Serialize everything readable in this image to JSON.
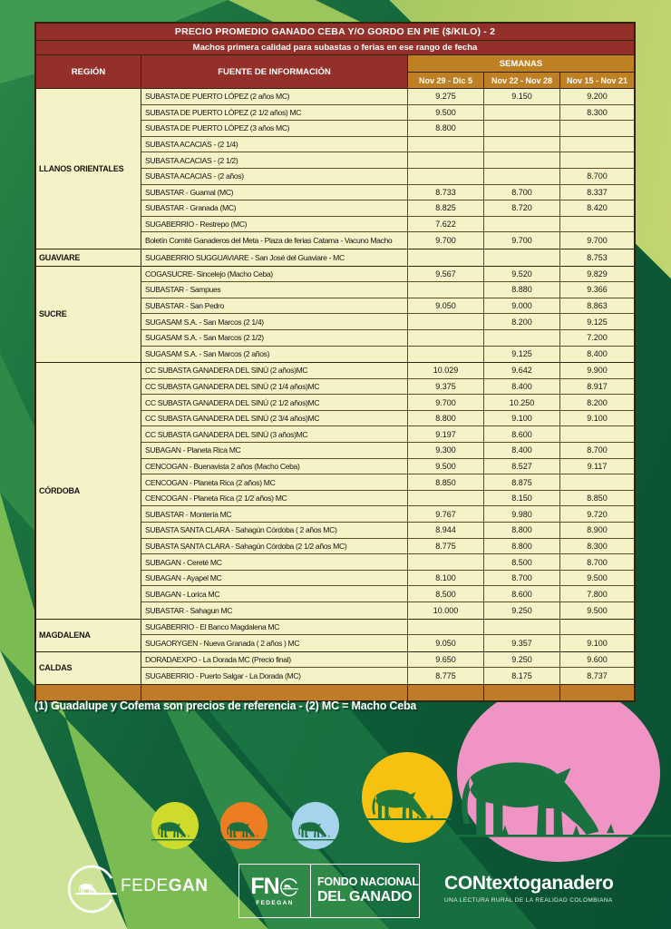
{
  "table": {
    "title": "PRECIO PROMEDIO GANADO CEBA Y/O GORDO EN PIE ($/KILO) - 2",
    "subtitle": "Machos primera calidad para subastas o ferias en ese rango de fecha",
    "columns": {
      "region": "REGIÓN",
      "source": "FUENTE DE INFORMACIÓN",
      "weeks_group": "SEMANAS",
      "weeks": [
        "Nov 29 - Dic 5",
        "Nov 22 - Nov 28",
        "Nov 15 - Nov 21"
      ]
    },
    "groups": [
      {
        "region": "LLANOS ORIENTALES",
        "rows": [
          {
            "source": "SUBASTA DE PUERTO LÓPEZ (2 años MC)",
            "values": [
              "9.275",
              "9.150",
              "9.200"
            ]
          },
          {
            "source": "SUBASTA DE PUERTO LÓPEZ (2 1/2 años) MC",
            "values": [
              "9.500",
              "",
              "8.300"
            ]
          },
          {
            "source": "SUBASTA DE PUERTO LÓPEZ (3 años MC)",
            "values": [
              "8.800",
              "",
              ""
            ]
          },
          {
            "source": "SUBASTA ACACIAS -  (2 1/4)",
            "values": [
              "",
              "",
              ""
            ]
          },
          {
            "source": "SUBASTA ACACIAS - (2 1/2)",
            "values": [
              "",
              "",
              ""
            ]
          },
          {
            "source": "SUBASTA ACACIAS - (2 años)",
            "values": [
              "",
              "",
              "8.700"
            ]
          },
          {
            "source": "SUBASTAR - Guamal (MC)",
            "values": [
              "8.733",
              "8.700",
              "8.337"
            ]
          },
          {
            "source": "SUBASTAR - Granada (MC)",
            "values": [
              "8.825",
              "8.720",
              "8.420"
            ]
          },
          {
            "source": "SUGABERRIO - Restrepo (MC)",
            "values": [
              "7.622",
              "",
              ""
            ]
          },
          {
            "source": "Boletín Comité Ganaderos del Meta - Plaza de ferias Catama - Vacuno Macho",
            "values": [
              "9.700",
              "9.700",
              "9.700"
            ]
          }
        ]
      },
      {
        "region": "GUAVIARE",
        "rows": [
          {
            "source": "SUGABERRIO SUGGUAVIARE - San José del Guaviare - MC",
            "values": [
              "",
              "",
              "8.753"
            ]
          }
        ]
      },
      {
        "region": "SUCRE",
        "rows": [
          {
            "source": "COGASUCRE- Sincelejo (Macho Ceba)",
            "values": [
              "9.567",
              "9.520",
              "9.829"
            ]
          },
          {
            "source": "SUBASTAR - Sampues",
            "values": [
              "",
              "8.880",
              "9.366"
            ]
          },
          {
            "source": "SUBASTAR - San Pedro",
            "values": [
              "9.050",
              "9.000",
              "8.863"
            ]
          },
          {
            "source": "SUGASAM S.A. - San Marcos (2 1/4)",
            "values": [
              "",
              "8.200",
              "9.125"
            ]
          },
          {
            "source": "SUGASAM S.A. - San Marcos (2 1/2)",
            "values": [
              "",
              "",
              "7.200"
            ]
          },
          {
            "source": "SUGASAM S.A. - San Marcos (2 años)",
            "values": [
              "",
              "9.125",
              "8.400"
            ]
          }
        ]
      },
      {
        "region": "CÓRDOBA",
        "rows": [
          {
            "source": "CC SUBASTA GANADERA DEL SINÚ (2 años)MC",
            "values": [
              "10.029",
              "9.642",
              "9.900"
            ]
          },
          {
            "source": "CC SUBASTA GANADERA DEL SINÚ (2 1/4 años)MC",
            "values": [
              "9.375",
              "8.400",
              "8.917"
            ]
          },
          {
            "source": "CC SUBASTA GANADERA DEL SINÚ (2 1/2 años)MC",
            "values": [
              "9.700",
              "10.250",
              "8.200"
            ]
          },
          {
            "source": "CC SUBASTA GANADERA DEL SINÚ (2 3/4 años)MC",
            "values": [
              "8.800",
              "9.100",
              "9.100"
            ]
          },
          {
            "source": "CC SUBASTA GANADERA DEL SINÚ (3 años)MC",
            "values": [
              "9.197",
              "8.600",
              ""
            ]
          },
          {
            "source": "SUBAGAN - Planeta Rica MC",
            "values": [
              "9.300",
              "8.400",
              "8.700"
            ]
          },
          {
            "source": "CENCOGAN - Buenavista 2 años (Macho Ceba)",
            "values": [
              "9.500",
              "8.527",
              "9.117"
            ]
          },
          {
            "source": "CENCOGAN - Planeta Rica (2 años) MC",
            "values": [
              "8.850",
              "8.875",
              ""
            ]
          },
          {
            "source": "CENCOGAN - Planeta Rica (2 1/2 años) MC",
            "values": [
              "",
              "8.150",
              "8.850"
            ]
          },
          {
            "source": "SUBASTAR - Montería MC",
            "values": [
              "9.767",
              "9.980",
              "9.720"
            ]
          },
          {
            "source": "SUBASTA SANTA CLARA - Sahagún Córdoba ( 2 años MC)",
            "values": [
              "8.944",
              "8.800",
              "8.900"
            ]
          },
          {
            "source": "SUBASTA SANTA CLARA - Sahagún Córdoba (2 1/2 años MC)",
            "values": [
              "8.775",
              "8.800",
              "8.300"
            ]
          },
          {
            "source": "SUBAGAN - Cereté MC",
            "values": [
              "",
              "8.500",
              "8.700"
            ]
          },
          {
            "source": "SUBAGAN - Ayapel MC",
            "values": [
              "8.100",
              "8.700",
              "9.500"
            ]
          },
          {
            "source": "SUBAGAN - Lorica MC",
            "values": [
              "8.500",
              "8.600",
              "7.800"
            ]
          },
          {
            "source": "SUBASTAR - Sahagun MC",
            "values": [
              "10.000",
              "9.250",
              "9.500"
            ]
          }
        ]
      },
      {
        "region": "MAGDALENA",
        "rows": [
          {
            "source": "SUGABERRIO - El Banco Magdalena MC",
            "values": [
              "",
              "",
              ""
            ]
          },
          {
            "source": "SUGAORYGEN - Nueva Granada ( 2 años ) MC",
            "values": [
              "9.050",
              "9.357",
              "9.100"
            ]
          }
        ]
      },
      {
        "region": "CALDAS",
        "rows": [
          {
            "source": "DORADAEXPO - La Dorada MC (Precio final)",
            "values": [
              "9.650",
              "9.250",
              "9.600"
            ]
          },
          {
            "source": "SUGABERRIO - Puerto Salgar - La Dorada (MC)",
            "values": [
              "8.775",
              "8.175",
              "8.737"
            ]
          }
        ]
      }
    ]
  },
  "footnote": "(1) Guadalupe y Cofema son precios de referencia  -  (2) MC = Macho Ceba",
  "logos": {
    "fedegan": {
      "light": "FEDE",
      "bold": "GAN"
    },
    "fng": {
      "abbr": "FN",
      "sub": "FEDEGAN",
      "line1": "FONDO NACIONAL",
      "line2": "DEL GANADO"
    },
    "contexto": {
      "name": "CONtextoganadero",
      "tagline": "UNA LECTURA RURAL DE LA REALIDAD COLOMBIANA"
    }
  },
  "icons": {
    "cow": "grazing-cow-silhouette"
  },
  "colors": {
    "maroon": "#93302a",
    "orange_header": "#bf7f23",
    "bottom_bar": "#c07b28",
    "cell_yellow": "#f4f2c6",
    "green_dark": "#0d5c35",
    "pink_circle": "#ef94c4",
    "yellow_circle": "#f6c20f",
    "lime_circle": "#cfdb2a",
    "orange_circle": "#ed7d23",
    "blue_circle": "#a6d4ed"
  }
}
